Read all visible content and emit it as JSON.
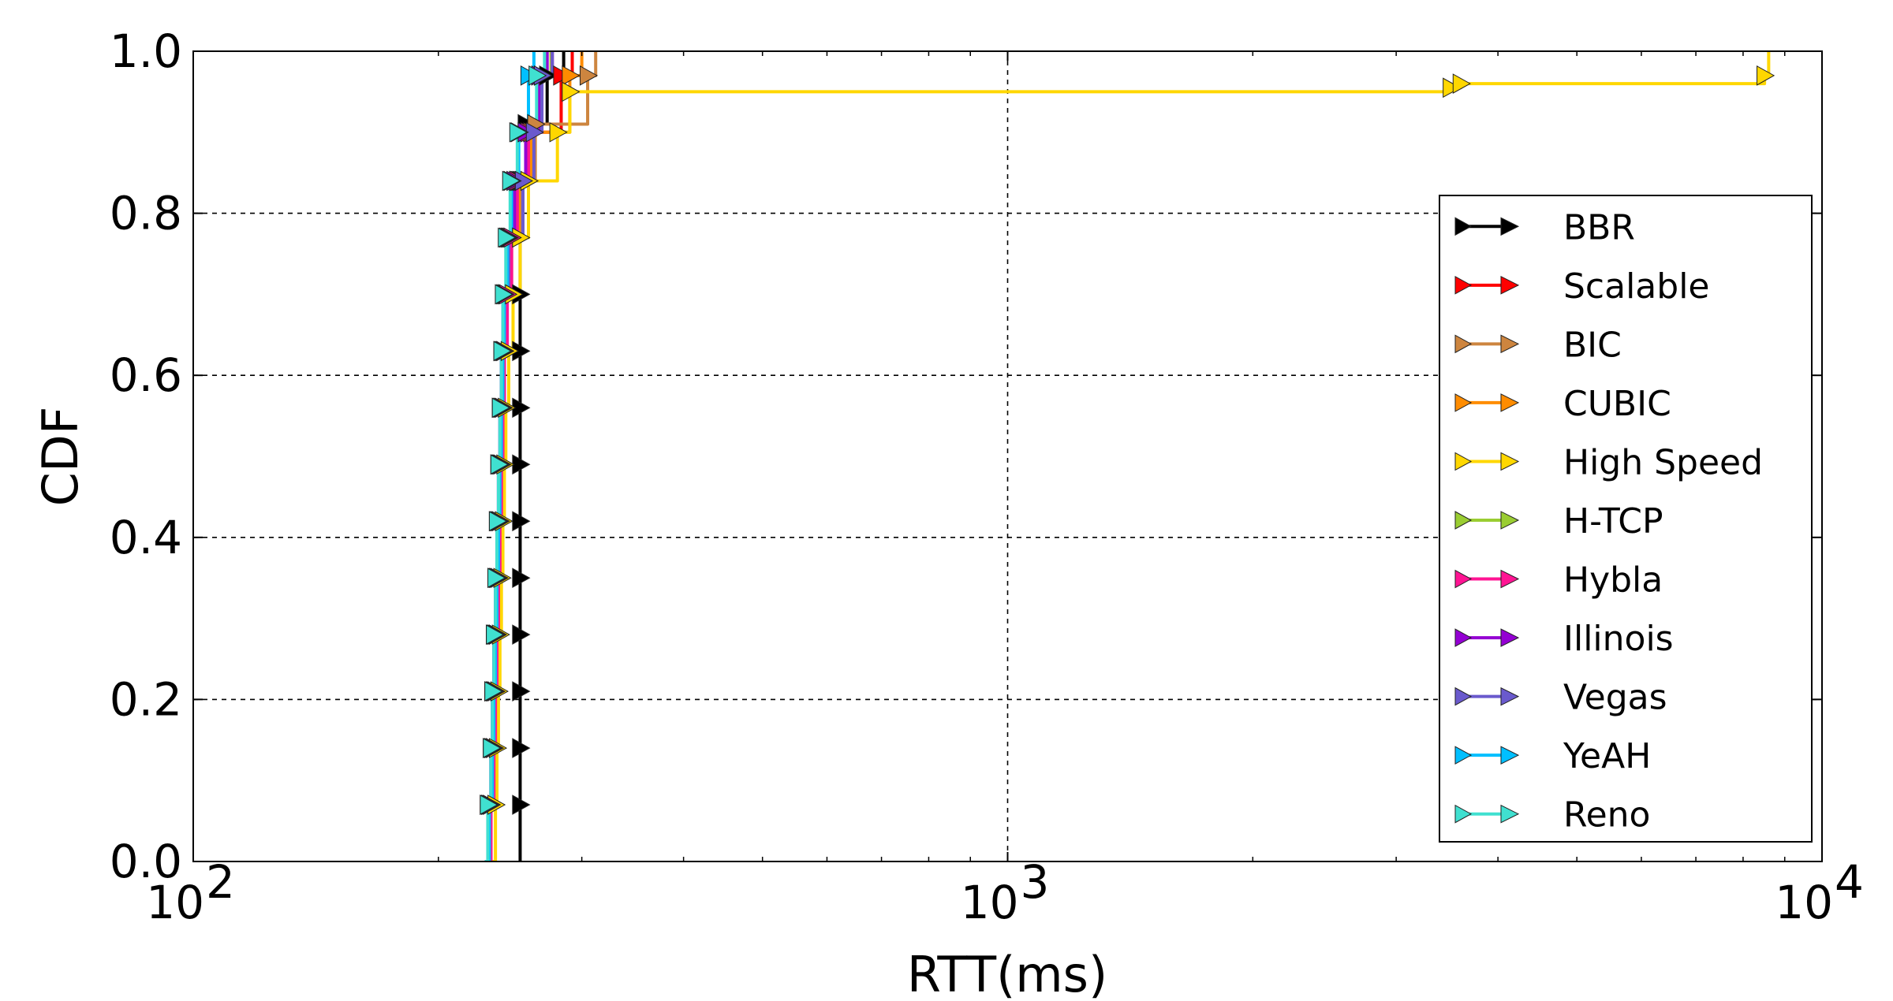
{
  "chart_data": {
    "type": "line",
    "title": "",
    "xlabel": "RTT(ms)",
    "ylabel": "CDF",
    "xscale": "log",
    "xlim": [
      100,
      10000
    ],
    "ylim": [
      0.0,
      1.0
    ],
    "x_ticks": [
      {
        "value": 100,
        "base": "10",
        "exp": "2"
      },
      {
        "value": 1000,
        "base": "10",
        "exp": "3"
      },
      {
        "value": 10000,
        "base": "10",
        "exp": "4"
      }
    ],
    "y_ticks": [
      {
        "value": 0.0,
        "label": "0.0"
      },
      {
        "value": 0.2,
        "label": "0.2"
      },
      {
        "value": 0.4,
        "label": "0.4"
      },
      {
        "value": 0.6,
        "label": "0.6"
      },
      {
        "value": 0.8,
        "label": "0.8"
      },
      {
        "value": 1.0,
        "label": "1.0"
      }
    ],
    "grid": true,
    "legend_position": "right",
    "series": [
      {
        "name": "BBR",
        "color": "#000000",
        "points": [
          [
            252,
            0
          ],
          [
            252,
            0.07
          ],
          [
            252,
            0.14
          ],
          [
            252,
            0.21
          ],
          [
            252,
            0.28
          ],
          [
            252,
            0.35
          ],
          [
            252,
            0.42
          ],
          [
            252,
            0.49
          ],
          [
            252,
            0.56
          ],
          [
            252,
            0.63
          ],
          [
            252,
            0.7
          ],
          [
            252,
            0.77
          ],
          [
            253,
            0.84
          ],
          [
            256,
            0.91
          ],
          [
            272,
            0.97
          ],
          [
            285,
            1.0
          ]
        ]
      },
      {
        "name": "Scalable",
        "color": "#ff0000",
        "points": [
          [
            230,
            0
          ],
          [
            232,
            0.07
          ],
          [
            234,
            0.14
          ],
          [
            235,
            0.21
          ],
          [
            236,
            0.28
          ],
          [
            237,
            0.35
          ],
          [
            238,
            0.42
          ],
          [
            239,
            0.49
          ],
          [
            240,
            0.56
          ],
          [
            241,
            0.63
          ],
          [
            242,
            0.7
          ],
          [
            244,
            0.77
          ],
          [
            250,
            0.84
          ],
          [
            258,
            0.9
          ],
          [
            283,
            0.97
          ],
          [
            292,
            1.0
          ]
        ]
      },
      {
        "name": "BIC",
        "color": "#cd853f",
        "points": [
          [
            229,
            0
          ],
          [
            231,
            0.07
          ],
          [
            233,
            0.14
          ],
          [
            234,
            0.21
          ],
          [
            235,
            0.28
          ],
          [
            236,
            0.35
          ],
          [
            237,
            0.42
          ],
          [
            238,
            0.49
          ],
          [
            239,
            0.56
          ],
          [
            240,
            0.63
          ],
          [
            242,
            0.7
          ],
          [
            245,
            0.77
          ],
          [
            252,
            0.84
          ],
          [
            263,
            0.91
          ],
          [
            305,
            0.97
          ],
          [
            312,
            1.0
          ]
        ]
      },
      {
        "name": "CUBIC",
        "color": "#ff8c00",
        "points": [
          [
            229,
            0
          ],
          [
            231,
            0.07
          ],
          [
            233,
            0.14
          ],
          [
            234,
            0.21
          ],
          [
            235,
            0.28
          ],
          [
            236,
            0.35
          ],
          [
            237,
            0.42
          ],
          [
            238,
            0.49
          ],
          [
            239,
            0.56
          ],
          [
            240,
            0.63
          ],
          [
            242,
            0.7
          ],
          [
            245,
            0.77
          ],
          [
            251,
            0.84
          ],
          [
            260,
            0.9
          ],
          [
            290,
            0.97
          ],
          [
            300,
            1.0
          ]
        ]
      },
      {
        "name": "High Speed",
        "color": "#ffd700",
        "points": [
          [
            232,
            0
          ],
          [
            235,
            0.07
          ],
          [
            236,
            0.14
          ],
          [
            237,
            0.21
          ],
          [
            238,
            0.28
          ],
          [
            239,
            0.35
          ],
          [
            240,
            0.42
          ],
          [
            241,
            0.49
          ],
          [
            242,
            0.56
          ],
          [
            244,
            0.63
          ],
          [
            247,
            0.7
          ],
          [
            252,
            0.77
          ],
          [
            258,
            0.84
          ],
          [
            280,
            0.9
          ],
          [
            290,
            0.95
          ],
          [
            3500,
            0.955
          ],
          [
            3600,
            0.96
          ],
          [
            8500,
            0.97
          ],
          [
            8600,
            1.0
          ]
        ]
      },
      {
        "name": "H-TCP",
        "color": "#9acd32",
        "points": [
          [
            229,
            0
          ],
          [
            231,
            0.07
          ],
          [
            233,
            0.14
          ],
          [
            234,
            0.21
          ],
          [
            235,
            0.28
          ],
          [
            236,
            0.35
          ],
          [
            237,
            0.42
          ],
          [
            238,
            0.49
          ],
          [
            239,
            0.56
          ],
          [
            240,
            0.63
          ],
          [
            242,
            0.7
          ],
          [
            246,
            0.77
          ],
          [
            250,
            0.84
          ],
          [
            256,
            0.9
          ],
          [
            268,
            0.97
          ],
          [
            275,
            1.0
          ]
        ]
      },
      {
        "name": "Hybla",
        "color": "#ff1493",
        "points": [
          [
            230,
            0
          ],
          [
            232,
            0.07
          ],
          [
            234,
            0.14
          ],
          [
            235,
            0.21
          ],
          [
            236,
            0.28
          ],
          [
            237,
            0.35
          ],
          [
            238,
            0.42
          ],
          [
            239,
            0.49
          ],
          [
            240,
            0.56
          ],
          [
            241,
            0.63
          ],
          [
            243,
            0.7
          ],
          [
            246,
            0.77
          ],
          [
            250,
            0.84
          ],
          [
            258,
            0.9
          ],
          [
            268,
            0.97
          ],
          [
            276,
            1.0
          ]
        ]
      },
      {
        "name": "Illinois",
        "color": "#9400d3",
        "points": [
          [
            228,
            0
          ],
          [
            230,
            0.07
          ],
          [
            232,
            0.14
          ],
          [
            233,
            0.21
          ],
          [
            234,
            0.28
          ],
          [
            235,
            0.35
          ],
          [
            236,
            0.42
          ],
          [
            237,
            0.49
          ],
          [
            238,
            0.56
          ],
          [
            239,
            0.63
          ],
          [
            240,
            0.7
          ],
          [
            243,
            0.77
          ],
          [
            248,
            0.84
          ],
          [
            256,
            0.9
          ],
          [
            266,
            0.97
          ],
          [
            272,
            1.0
          ]
        ]
      },
      {
        "name": "Vegas",
        "color": "#6a5acd",
        "points": [
          [
            228,
            0
          ],
          [
            230,
            0.07
          ],
          [
            232,
            0.14
          ],
          [
            233,
            0.21
          ],
          [
            234,
            0.28
          ],
          [
            235,
            0.35
          ],
          [
            236,
            0.42
          ],
          [
            237,
            0.49
          ],
          [
            238,
            0.56
          ],
          [
            239,
            0.63
          ],
          [
            241,
            0.7
          ],
          [
            244,
            0.77
          ],
          [
            254,
            0.84
          ],
          [
            262,
            0.9
          ],
          [
            268,
            0.97
          ],
          [
            276,
            1.0
          ]
        ]
      },
      {
        "name": "YeAH",
        "color": "#00bfff",
        "points": [
          [
            229,
            0
          ],
          [
            231,
            0.07
          ],
          [
            233,
            0.14
          ],
          [
            234,
            0.21
          ],
          [
            235,
            0.28
          ],
          [
            236,
            0.35
          ],
          [
            237,
            0.42
          ],
          [
            238,
            0.49
          ],
          [
            239,
            0.56
          ],
          [
            240,
            0.63
          ],
          [
            241,
            0.7
          ],
          [
            243,
            0.77
          ],
          [
            246,
            0.84
          ],
          [
            251,
            0.9
          ],
          [
            258,
            0.97
          ],
          [
            262,
            1.0
          ]
        ]
      },
      {
        "name": "Reno",
        "color": "#40e0d0",
        "points": [
          [
            228,
            0
          ],
          [
            230,
            0.07
          ],
          [
            232,
            0.14
          ],
          [
            233,
            0.21
          ],
          [
            234,
            0.28
          ],
          [
            235,
            0.35
          ],
          [
            236,
            0.42
          ],
          [
            237,
            0.49
          ],
          [
            238,
            0.56
          ],
          [
            239,
            0.63
          ],
          [
            240,
            0.7
          ],
          [
            242,
            0.77
          ],
          [
            245,
            0.84
          ],
          [
            250,
            0.9
          ],
          [
            264,
            0.97
          ],
          [
            270,
            1.0
          ]
        ]
      }
    ]
  }
}
